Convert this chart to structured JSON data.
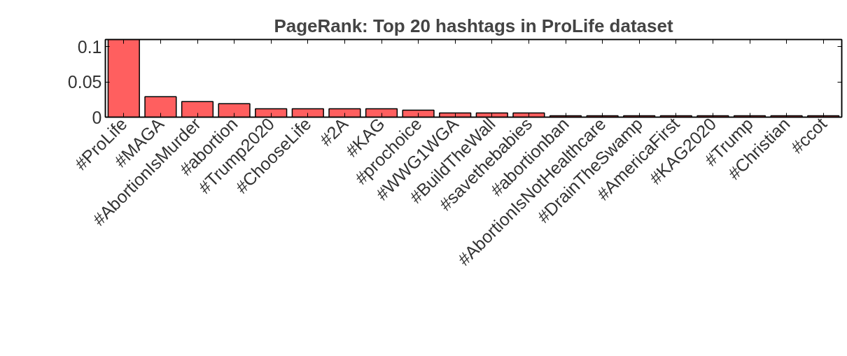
{
  "chart_data": {
    "type": "bar",
    "title": "PageRank: Top 20 hashtags in ProLife dataset",
    "categories": [
      "#ProLife",
      "#MAGA",
      "#AbortionIsMurder",
      "#abortion",
      "#Trump2020",
      "#ChooseLife",
      "#2A",
      "#KAG",
      "#prochoice",
      "#WWG1WGA",
      "#BuildTheWall",
      "#savethebabies",
      "#abortionban",
      "#AbortionIsNotHealthcare",
      "#DrainTheSwamp",
      "#AmericaFirst",
      "#KAG2020",
      "#Trump",
      "#Christian",
      "#ccot"
    ],
    "values": [
      0.11,
      0.029,
      0.022,
      0.019,
      0.012,
      0.012,
      0.012,
      0.012,
      0.01,
      0.006,
      0.006,
      0.006,
      0.002,
      0.002,
      0.002,
      0.002,
      0.002,
      0.002,
      0.002,
      0.002
    ],
    "color": "#ff5f5f",
    "ylim": [
      0,
      0.11
    ],
    "yticks": [
      0,
      0.05,
      0.1
    ],
    "grid": false
  }
}
